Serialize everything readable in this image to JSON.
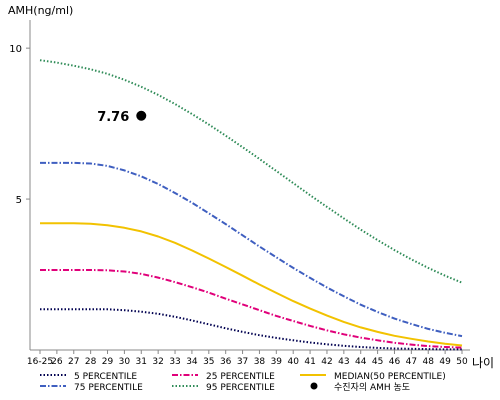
{
  "chart_data": {
    "type": "line",
    "title": "",
    "ylabel": "AMH(ng/ml)",
    "xlabel": "나이",
    "ylim": [
      0,
      10.8
    ],
    "yticks": [
      5,
      10
    ],
    "grid": false,
    "legend_position": "bottom",
    "categories": [
      "16-25",
      "26",
      "27",
      "28",
      "29",
      "30",
      "31",
      "32",
      "33",
      "34",
      "35",
      "36",
      "37",
      "38",
      "39",
      "40",
      "41",
      "42",
      "43",
      "44",
      "45",
      "46",
      "47",
      "48",
      "49",
      "50"
    ],
    "series": [
      {
        "name": "5 PERCENTILE",
        "color": "#000050",
        "dash": "dotted",
        "values": [
          1.35,
          1.35,
          1.35,
          1.35,
          1.35,
          1.32,
          1.27,
          1.2,
          1.1,
          0.98,
          0.85,
          0.72,
          0.6,
          0.49,
          0.4,
          0.32,
          0.25,
          0.19,
          0.14,
          0.1,
          0.07,
          0.05,
          0.04,
          0.03,
          0.02,
          0.02
        ]
      },
      {
        "name": "25 PERCENTILE",
        "color": "#e0007a",
        "dash": "dashdot",
        "values": [
          2.65,
          2.65,
          2.65,
          2.65,
          2.64,
          2.6,
          2.52,
          2.4,
          2.25,
          2.08,
          1.9,
          1.7,
          1.51,
          1.32,
          1.13,
          0.96,
          0.8,
          0.65,
          0.52,
          0.41,
          0.32,
          0.24,
          0.18,
          0.13,
          0.1,
          0.08
        ]
      },
      {
        "name": "MEDIAN(50 PERCENTILE)",
        "color": "#f2c200",
        "dash": "solid",
        "values": [
          4.2,
          4.2,
          4.2,
          4.18,
          4.13,
          4.05,
          3.93,
          3.76,
          3.55,
          3.3,
          3.03,
          2.75,
          2.46,
          2.17,
          1.89,
          1.62,
          1.37,
          1.14,
          0.93,
          0.75,
          0.6,
          0.47,
          0.37,
          0.28,
          0.21,
          0.15
        ]
      },
      {
        "name": "75 PERCENTILE",
        "color": "#3f5fc0",
        "dash": "dashdot",
        "values": [
          6.2,
          6.2,
          6.2,
          6.18,
          6.1,
          5.95,
          5.75,
          5.5,
          5.2,
          4.88,
          4.53,
          4.17,
          3.8,
          3.43,
          3.07,
          2.72,
          2.39,
          2.07,
          1.78,
          1.5,
          1.26,
          1.04,
          0.86,
          0.7,
          0.57,
          0.46
        ]
      },
      {
        "name": "95 PERCENTILE",
        "color": "#2e8b57",
        "dash": "dotted",
        "values": [
          9.6,
          9.52,
          9.42,
          9.3,
          9.15,
          8.95,
          8.72,
          8.45,
          8.15,
          7.82,
          7.47,
          7.1,
          6.72,
          6.33,
          5.93,
          5.53,
          5.13,
          4.74,
          4.36,
          3.99,
          3.64,
          3.31,
          3.0,
          2.72,
          2.46,
          2.23
        ]
      }
    ],
    "points": [
      {
        "name": "수진자의 AMH 농도",
        "x": "31",
        "y": 7.76,
        "label": "7.76",
        "color": "#000000"
      }
    ],
    "legend": [
      {
        "label": "5 PERCENTILE",
        "color": "#000050",
        "dash": "dotted"
      },
      {
        "label": "25 PERCENTILE",
        "color": "#e0007a",
        "dash": "dashdot"
      },
      {
        "label": "MEDIAN(50 PERCENTILE)",
        "color": "#f2c200",
        "dash": "solid"
      },
      {
        "label": "75 PERCENTILE",
        "color": "#3f5fc0",
        "dash": "dashdot"
      },
      {
        "label": "95 PERCENTILE",
        "color": "#2e8b57",
        "dash": "dotted"
      },
      {
        "label": "수진자의 AMH 농도",
        "color": "#000000",
        "marker": "circle"
      }
    ]
  }
}
